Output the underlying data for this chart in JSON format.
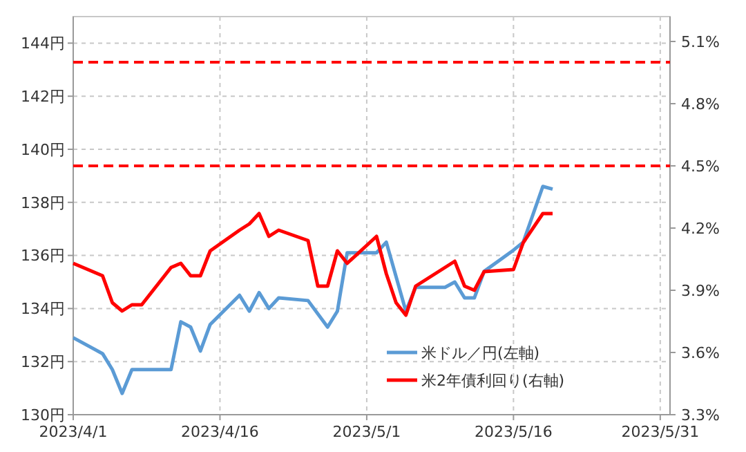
{
  "chart_data": {
    "type": "line",
    "xlim": [
      "2023-04-01",
      "2023-06-01"
    ],
    "xticks": [
      {
        "value": "2023-04-01",
        "label": "2023/4/1"
      },
      {
        "value": "2023-04-16",
        "label": "2023/4/16"
      },
      {
        "value": "2023-05-01",
        "label": "2023/5/1"
      },
      {
        "value": "2023-05-16",
        "label": "2023/5/16"
      },
      {
        "value": "2023-05-31",
        "label": "2023/5/31"
      }
    ],
    "ylim": [
      130,
      145
    ],
    "yticks": [
      {
        "value": 130,
        "label": "130円"
      },
      {
        "value": 132,
        "label": "132円"
      },
      {
        "value": 134,
        "label": "134円"
      },
      {
        "value": 136,
        "label": "136円"
      },
      {
        "value": 138,
        "label": "138円"
      },
      {
        "value": 140,
        "label": "140円"
      },
      {
        "value": 142,
        "label": "142円"
      },
      {
        "value": 144,
        "label": "144円"
      }
    ],
    "y2lim": [
      3.3,
      5.22
    ],
    "y2ticks": [
      {
        "value": 3.3,
        "label": "3.3%"
      },
      {
        "value": 3.6,
        "label": "3.6%"
      },
      {
        "value": 3.9,
        "label": "3.9%"
      },
      {
        "value": 4.2,
        "label": "4.2%"
      },
      {
        "value": 4.5,
        "label": "4.5%"
      },
      {
        "value": 4.8,
        "label": "4.8%"
      },
      {
        "value": 5.1,
        "label": "5.1%"
      }
    ],
    "grid": true,
    "legend": "bottom right",
    "marker": "none",
    "line_style": "solid",
    "series": [
      {
        "name": "米ドル／円(左軸)",
        "color": "#5b9bd5",
        "x": [
          "2023-04-01",
          "2023-04-04",
          "2023-04-05",
          "2023-04-06",
          "2023-04-07",
          "2023-04-11",
          "2023-04-12",
          "2023-04-13",
          "2023-04-14",
          "2023-04-15",
          "2023-04-18",
          "2023-04-19",
          "2023-04-20",
          "2023-04-21",
          "2023-04-22",
          "2023-04-25",
          "2023-04-27",
          "2023-04-28",
          "2023-04-29",
          "2023-05-02",
          "2023-05-03",
          "2023-05-05",
          "2023-05-06",
          "2023-05-09",
          "2023-05-10",
          "2023-05-11",
          "2023-05-12",
          "2023-05-13",
          "2023-05-16",
          "2023-05-17",
          "2023-05-19",
          "2023-05-20"
        ],
        "values": [
          132.9,
          132.3,
          131.7,
          130.8,
          131.7,
          131.7,
          133.5,
          133.3,
          132.4,
          133.4,
          134.5,
          133.9,
          134.6,
          134.0,
          134.4,
          134.3,
          133.3,
          133.9,
          136.1,
          136.1,
          136.5,
          133.9,
          134.8,
          134.8,
          135.0,
          134.4,
          134.4,
          135.4,
          136.2,
          136.5,
          138.6,
          138.5
        ]
      },
      {
        "name": "米2年債利回り(右軸)",
        "color": "#ff0000",
        "axis": "y2",
        "x": [
          "2023-04-01",
          "2023-04-04",
          "2023-04-05",
          "2023-04-06",
          "2023-04-07",
          "2023-04-08",
          "2023-04-11",
          "2023-04-12",
          "2023-04-13",
          "2023-04-14",
          "2023-04-15",
          "2023-04-18",
          "2023-04-19",
          "2023-04-20",
          "2023-04-21",
          "2023-04-22",
          "2023-04-25",
          "2023-04-26",
          "2023-04-27",
          "2023-04-28",
          "2023-04-29",
          "2023-05-02",
          "2023-05-03",
          "2023-05-04",
          "2023-05-05",
          "2023-05-06",
          "2023-05-10",
          "2023-05-11",
          "2023-05-12",
          "2023-05-13",
          "2023-05-16",
          "2023-05-17",
          "2023-05-19",
          "2023-05-20"
        ],
        "values": [
          4.03,
          3.97,
          3.84,
          3.8,
          3.83,
          3.83,
          4.01,
          4.03,
          3.97,
          3.97,
          4.09,
          4.19,
          4.22,
          4.27,
          4.16,
          4.19,
          4.14,
          3.92,
          3.92,
          4.09,
          4.03,
          4.16,
          3.98,
          3.84,
          3.78,
          3.92,
          4.04,
          3.92,
          3.9,
          3.99,
          4.0,
          4.13,
          4.27,
          4.27
        ]
      }
    ],
    "ref_lines": [
      {
        "axis": "y2",
        "value": 5.0,
        "color": "#ff0000",
        "line_style": "dashed"
      },
      {
        "axis": "y2",
        "value": 4.5,
        "color": "#ff0000",
        "line_style": "dashed"
      }
    ]
  }
}
